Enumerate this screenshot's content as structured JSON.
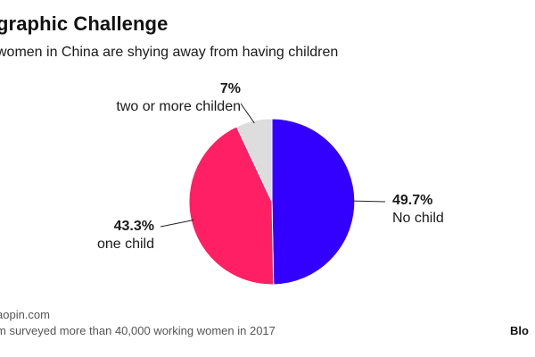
{
  "title": "graphic Challenge",
  "subtitle": "women in China are shying away from having children",
  "source": "aopin.com",
  "note": "m surveyed more than 40,000 working women in 2017",
  "brand": "Blo",
  "colors": {
    "no_child": "#3300ff",
    "one_child": "#ff1f64",
    "two_or_more": "#dddddd"
  },
  "chart_data": {
    "type": "pie",
    "slices": [
      {
        "label": "No child",
        "value": 49.7,
        "value_label": "49.7%",
        "color": "#3300ff"
      },
      {
        "label": "one child",
        "value": 43.3,
        "value_label": "43.3%",
        "color": "#ff1f64"
      },
      {
        "label": "two or more childen",
        "value": 7,
        "value_label": "7%",
        "color": "#dddddd"
      }
    ]
  }
}
